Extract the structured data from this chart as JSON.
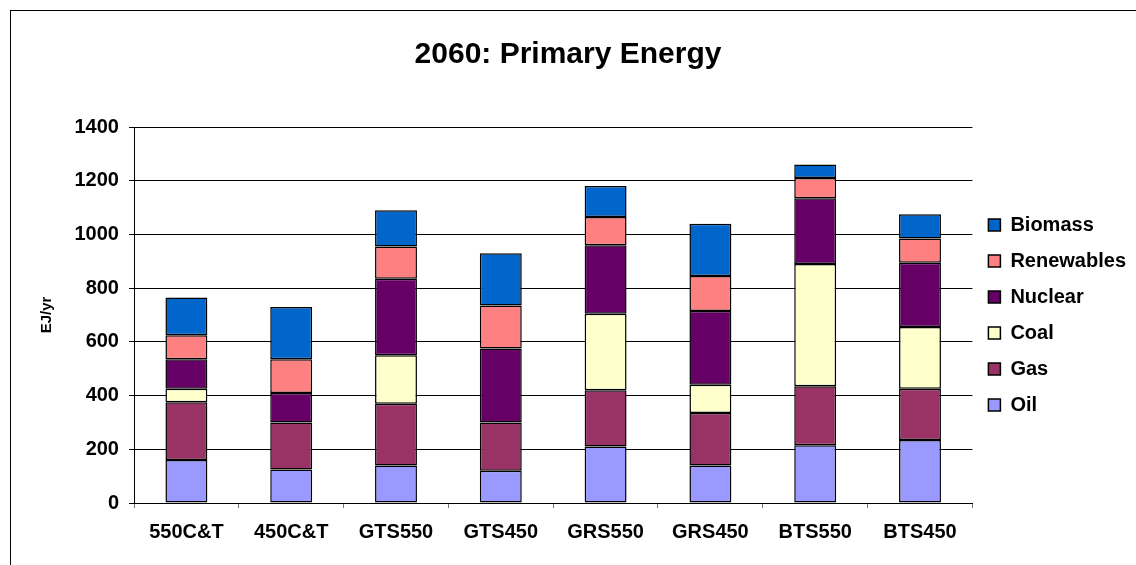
{
  "chart_data": {
    "type": "bar",
    "title": "2060: Primary Energy",
    "ylabel": "EJ/yr",
    "stacked": true,
    "categories": [
      "550C&T",
      "450C&T",
      "GTS550",
      "GTS450",
      "GRS550",
      "GRS450",
      "BTS550",
      "BTS450"
    ],
    "series": [
      {
        "name": "Oil",
        "color": "#9999ff",
        "values": [
          160,
          125,
          140,
          120,
          210,
          140,
          215,
          235
        ]
      },
      {
        "name": "Gas",
        "color": "#993366",
        "values": [
          215,
          175,
          230,
          180,
          210,
          195,
          220,
          190
        ]
      },
      {
        "name": "Coal",
        "color": "#ffffcc",
        "values": [
          50,
          0,
          180,
          0,
          285,
          105,
          455,
          230
        ]
      },
      {
        "name": "Nuclear",
        "color": "#660066",
        "values": [
          110,
          110,
          285,
          275,
          255,
          275,
          245,
          240
        ]
      },
      {
        "name": "Renewables",
        "color": "#ff8080",
        "values": [
          90,
          125,
          120,
          160,
          105,
          130,
          75,
          90
        ]
      },
      {
        "name": "Biomass",
        "color": "#0066cc",
        "values": [
          140,
          195,
          135,
          195,
          115,
          195,
          50,
          90
        ]
      }
    ],
    "ylim": [
      0,
      1400
    ],
    "yticks": [
      0,
      200,
      400,
      600,
      800,
      1000,
      1200,
      1400
    ],
    "grid": "y",
    "legend": "right"
  }
}
